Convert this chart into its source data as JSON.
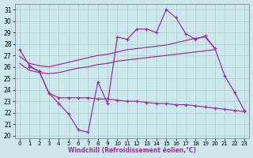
{
  "xlabel": "Windchill (Refroidissement éolien,°C)",
  "x": [
    0,
    1,
    2,
    3,
    4,
    5,
    6,
    7,
    8,
    9,
    10,
    11,
    12,
    13,
    14,
    15,
    16,
    17,
    18,
    19,
    20,
    21,
    22,
    23
  ],
  "s1": [
    27.5,
    26.1,
    25.6,
    23.7,
    22.8,
    21.9,
    20.5,
    20.3,
    24.7,
    22.8,
    28.6,
    28.4,
    29.3,
    29.3,
    29.0,
    31.0,
    30.3,
    28.9,
    28.4,
    28.7,
    27.6,
    25.2,
    23.8,
    22.2
  ],
  "s2_x": [
    0,
    1,
    2,
    3,
    4,
    5,
    6,
    7,
    8,
    9,
    10,
    11,
    12,
    13,
    14,
    15,
    16,
    17,
    18,
    19,
    20
  ],
  "s2": [
    26.9,
    26.3,
    26.1,
    26.0,
    26.2,
    26.4,
    26.6,
    26.8,
    27.0,
    27.1,
    27.3,
    27.5,
    27.6,
    27.7,
    27.8,
    27.9,
    28.1,
    28.3,
    28.5,
    28.6,
    27.6
  ],
  "s3_x": [
    0,
    1,
    2,
    3,
    4,
    5,
    6,
    7,
    8,
    9,
    10,
    11,
    12,
    13,
    14,
    15,
    16,
    17,
    18,
    19,
    20
  ],
  "s3": [
    26.3,
    25.7,
    25.5,
    25.4,
    25.5,
    25.7,
    25.9,
    26.0,
    26.2,
    26.3,
    26.5,
    26.6,
    26.7,
    26.8,
    26.9,
    27.0,
    27.1,
    27.2,
    27.3,
    27.4,
    27.5
  ],
  "s4_x": [
    1,
    2,
    3,
    4,
    5,
    6,
    7,
    8,
    9,
    10,
    11,
    12,
    13,
    14,
    15,
    16,
    17,
    18,
    19,
    20,
    21,
    22,
    23
  ],
  "s4": [
    26.0,
    25.6,
    23.7,
    23.3,
    23.3,
    23.3,
    23.3,
    23.2,
    23.2,
    23.1,
    23.0,
    23.0,
    22.9,
    22.8,
    22.8,
    22.7,
    22.7,
    22.6,
    22.5,
    22.4,
    22.3,
    22.2,
    22.1
  ],
  "line_color": "#993399",
  "bg_color": "#cce8ec",
  "grid_color": "#a8cdd0",
  "ylim": [
    19.8,
    31.5
  ],
  "yticks": [
    20,
    21,
    22,
    23,
    24,
    25,
    26,
    27,
    28,
    29,
    30,
    31
  ],
  "figw": 3.2,
  "figh": 2.0,
  "dpi": 100
}
